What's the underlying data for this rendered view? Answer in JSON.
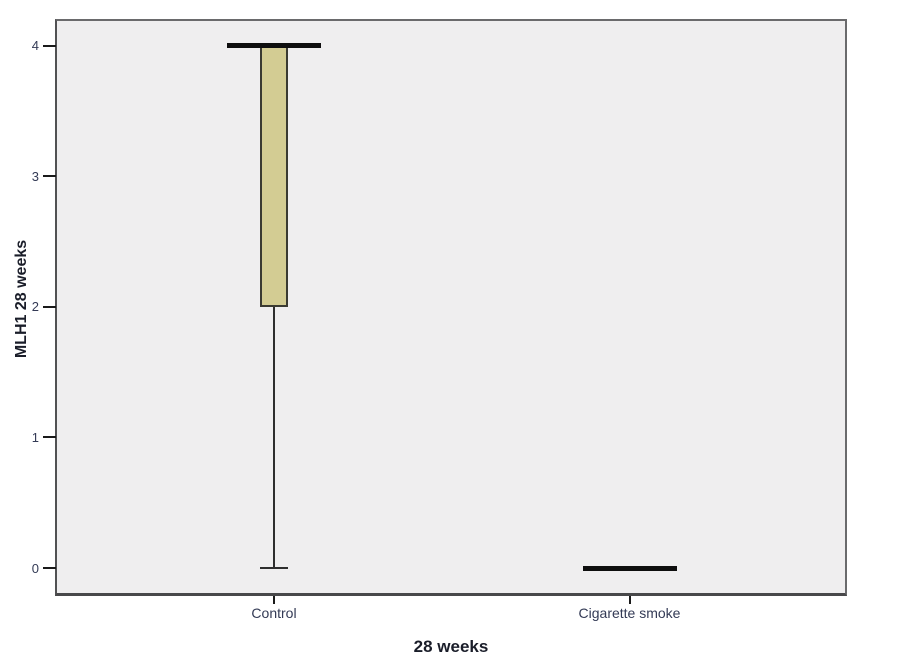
{
  "chart_data": {
    "type": "box",
    "title": "",
    "xlabel": "28 weeks",
    "ylabel": "MLH1 28 weeks",
    "categories": [
      "Control",
      "Cigarette smoke"
    ],
    "yticks": [
      0,
      1,
      2,
      3,
      4
    ],
    "ylim": [
      -0.2,
      4.2
    ],
    "grid": false,
    "legend": "none",
    "series": [
      {
        "name": "Control",
        "median": 4,
        "q1": 2,
        "q3": 4,
        "whisker_min": 0,
        "whisker_max": 4
      },
      {
        "name": "Cigarette smoke",
        "median": 0,
        "q1": 0,
        "q3": 0,
        "whisker_min": 0,
        "whisker_max": 0
      }
    ],
    "colors": {
      "box_fill": "#d3cc93",
      "box_border": "#3a3a32",
      "median": "#0e0e0e",
      "whisker": "#2e2e2e",
      "plot_background": "#efeeef",
      "frame": "#5a5a5c",
      "tick_label": "#333a55",
      "axis_title": "#1a1d29"
    }
  }
}
